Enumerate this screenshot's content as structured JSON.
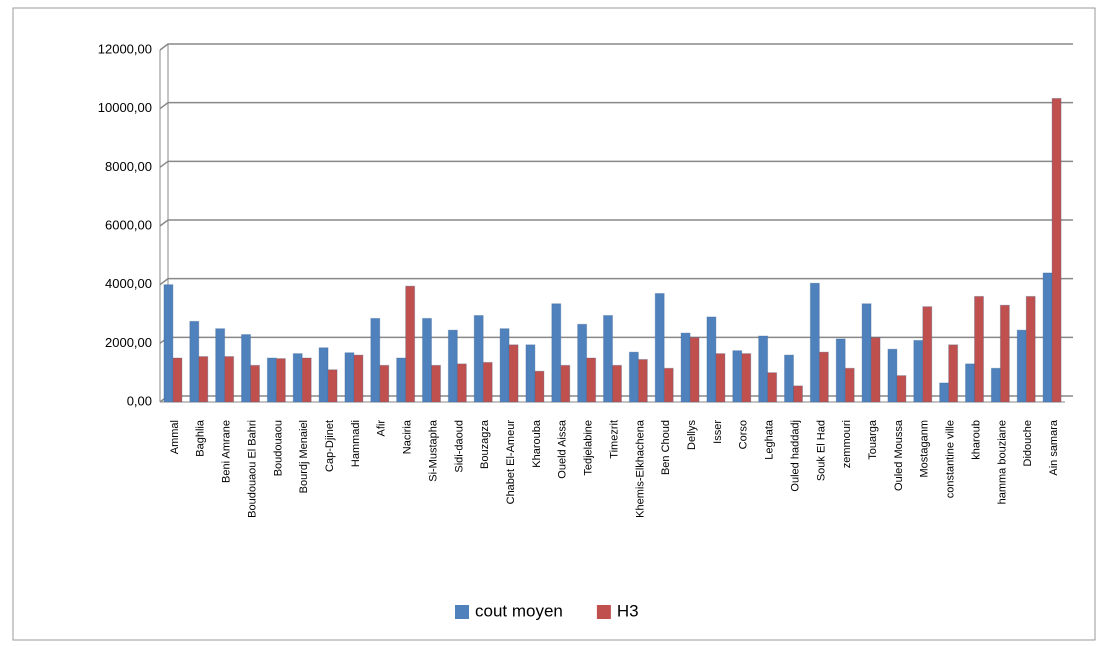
{
  "chart_data": {
    "type": "bar",
    "categories": [
      "Ammal",
      "Baghlia",
      "Beni Amrane",
      "Boudouaou El Bahri",
      "Boudouaou",
      "Bourdj Menaiel",
      "Cap-Djinet",
      "Hammadi",
      "Afir",
      "Naciria",
      "Si-Mustapha",
      "Sidi-daoud",
      "Bouzagza",
      "Chabet El-Ameur",
      "Kharouba",
      "Oueld Aissa",
      "Tedjelabine",
      "Timezrit",
      "Khemis-Elkhachena",
      "Ben Choud",
      "Dellys",
      "Isser",
      "Corso",
      "Leghata",
      "Ouled haddadj",
      "Souk El Had",
      "zemmouri",
      "Touarga",
      "Ouled Moussa",
      "Mostaganm",
      "constantine ville",
      "kharoub",
      "hamma bouziane",
      "Didouche",
      "Ain samara"
    ],
    "series": [
      {
        "name": "cout moyen",
        "color": "#4f81bd",
        "values": [
          4000,
          2750,
          2500,
          2300,
          1500,
          1650,
          1850,
          1680,
          2850,
          1500,
          2850,
          2450,
          2950,
          2500,
          1950,
          3350,
          2650,
          2950,
          1700,
          3700,
          2350,
          2900,
          1750,
          2250,
          1600,
          4050,
          2150,
          3350,
          1800,
          2100,
          650,
          1300,
          1150,
          2450,
          4400
        ]
      },
      {
        "name": "H3",
        "color": "#c0504d",
        "values": [
          1500,
          1550,
          1550,
          1250,
          1480,
          1500,
          1100,
          1600,
          1250,
          3950,
          1250,
          1300,
          1350,
          1950,
          1050,
          1250,
          1500,
          1250,
          1450,
          1150,
          2200,
          1650,
          1650,
          1000,
          550,
          1700,
          1150,
          2200,
          900,
          3250,
          1950,
          3600,
          3300,
          3600,
          10350
        ]
      }
    ],
    "ylim": [
      0,
      12000
    ],
    "yticks": [
      {
        "value": 0,
        "label": "0,00"
      },
      {
        "value": 2000,
        "label": "2000,00"
      },
      {
        "value": 4000,
        "label": "4000,00"
      },
      {
        "value": 6000,
        "label": "6000,00"
      },
      {
        "value": 8000,
        "label": "8000,00"
      },
      {
        "value": 10000,
        "label": "10000,00"
      },
      {
        "value": 12000,
        "label": "12000,00"
      }
    ],
    "grid": true,
    "legend": "bottom"
  }
}
